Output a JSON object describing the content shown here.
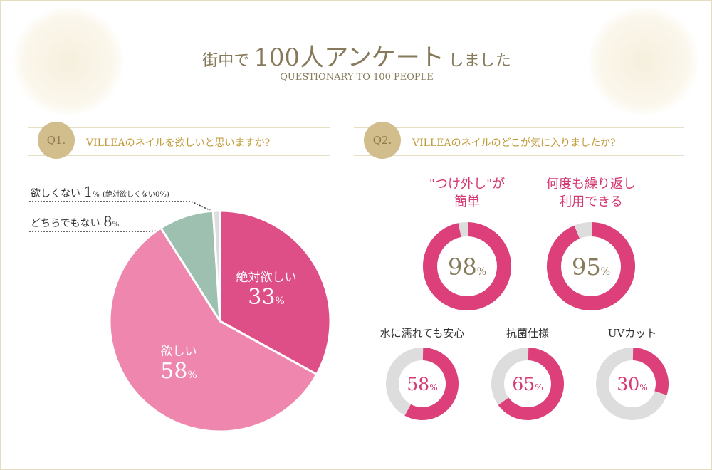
{
  "header": {
    "title_pre": "街中で",
    "title_big": "100人アンケート",
    "title_post": "しました",
    "subtitle": "QUESTIONARY TO 100 PEOPLE"
  },
  "q1": {
    "num": "Q1.",
    "question": "VILLEAのネイルを欲しいと思いますか?",
    "labels": {
      "no": "欲しくない",
      "no_val": "1",
      "no_note": "(絶対欲しくない0%)",
      "neutral": "どちらでもない",
      "neutral_val": "8",
      "pct": "%",
      "abs": "絶対欲しい",
      "abs_val": "33",
      "want": "欲しい",
      "want_val": "58"
    }
  },
  "q2": {
    "num": "Q2.",
    "question": "VILLEAのネイルのどこが気に入りましたか?"
  },
  "chart_data": [
    {
      "type": "pie",
      "categories": [
        "絶対欲しい",
        "欲しい",
        "どちらでもない",
        "欲しくない"
      ],
      "values": [
        33,
        58,
        8,
        1
      ],
      "colors": [
        "#de4f88",
        "#ee86ad",
        "#9dc0b0",
        "#dddddd"
      ]
    },
    {
      "type": "donut",
      "items": [
        {
          "label1": "\"つけ外し\"が",
          "label2": "簡単",
          "value": 98
        },
        {
          "label1": "何度も繰り返し",
          "label2": "利用できる",
          "value": 95
        },
        {
          "label1": "水に濡れても安心",
          "value": 58
        },
        {
          "label1": "抗菌仕様",
          "value": 65
        },
        {
          "label1": "UVカット",
          "value": 30
        }
      ],
      "colors": {
        "fill": "#dc3f7a",
        "rest": "#dddddd",
        "big_number": "#867a5a",
        "small_number": "#d43a73"
      },
      "unit": "%"
    }
  ]
}
